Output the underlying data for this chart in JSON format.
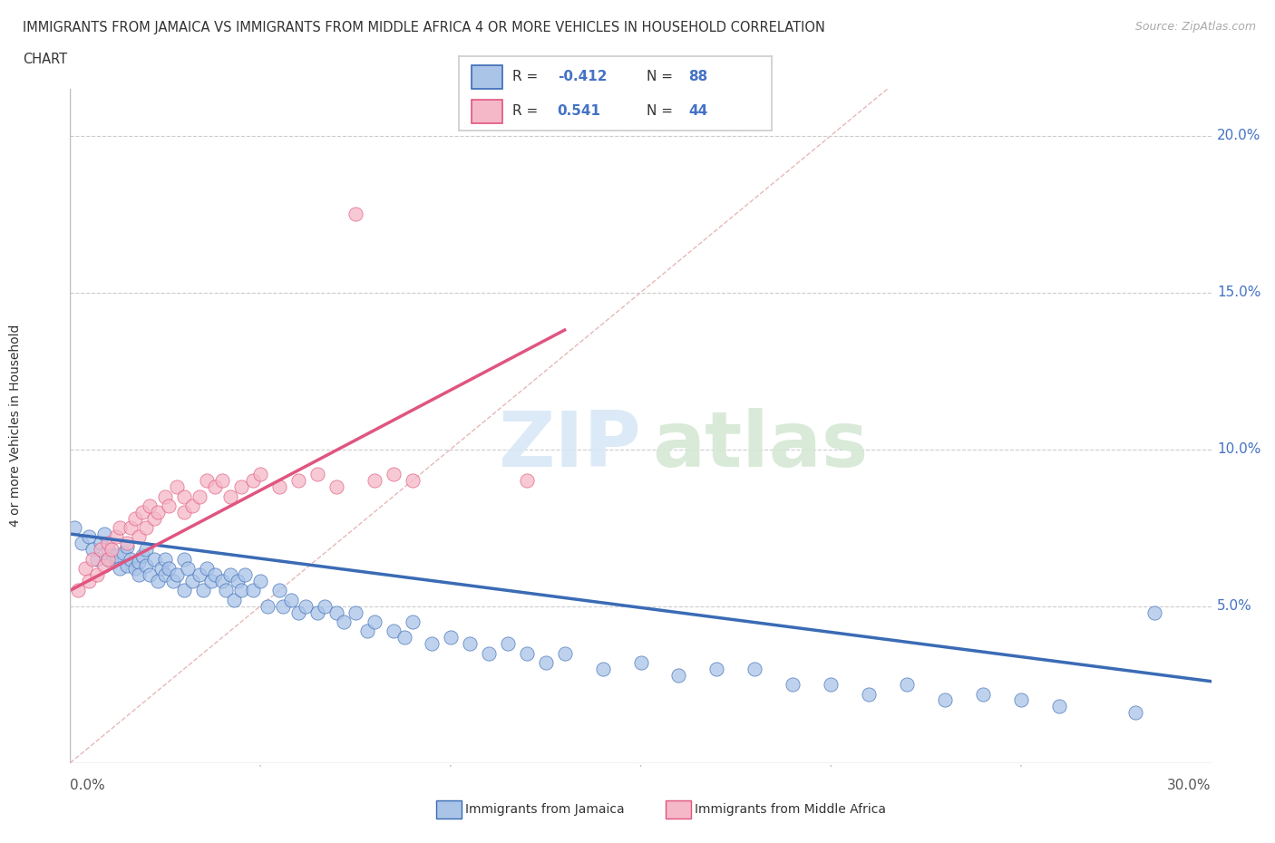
{
  "title_line1": "IMMIGRANTS FROM JAMAICA VS IMMIGRANTS FROM MIDDLE AFRICA 4 OR MORE VEHICLES IN HOUSEHOLD CORRELATION",
  "title_line2": "CHART",
  "source": "Source: ZipAtlas.com",
  "ylabel": "4 or more Vehicles in Household",
  "yticks": [
    "5.0%",
    "10.0%",
    "15.0%",
    "20.0%"
  ],
  "ytick_vals": [
    0.05,
    0.1,
    0.15,
    0.2
  ],
  "xlim": [
    0.0,
    0.3
  ],
  "ylim": [
    0.0,
    0.215
  ],
  "color_jamaica": "#aac4e8",
  "color_middle_africa": "#f5b8c8",
  "color_jamaica_line": "#3a6bb5",
  "color_middle_africa_line": "#e05580",
  "color_diag": "#ccaaaa",
  "jamaica_scatter_x": [
    0.001,
    0.003,
    0.005,
    0.006,
    0.007,
    0.008,
    0.009,
    0.01,
    0.01,
    0.011,
    0.012,
    0.013,
    0.014,
    0.015,
    0.015,
    0.016,
    0.017,
    0.018,
    0.018,
    0.019,
    0.02,
    0.02,
    0.021,
    0.022,
    0.023,
    0.024,
    0.025,
    0.025,
    0.026,
    0.027,
    0.028,
    0.03,
    0.03,
    0.031,
    0.032,
    0.034,
    0.035,
    0.036,
    0.037,
    0.038,
    0.04,
    0.041,
    0.042,
    0.043,
    0.044,
    0.045,
    0.046,
    0.048,
    0.05,
    0.052,
    0.055,
    0.056,
    0.058,
    0.06,
    0.062,
    0.065,
    0.067,
    0.07,
    0.072,
    0.075,
    0.078,
    0.08,
    0.085,
    0.088,
    0.09,
    0.095,
    0.1,
    0.105,
    0.11,
    0.115,
    0.12,
    0.125,
    0.13,
    0.14,
    0.15,
    0.16,
    0.17,
    0.18,
    0.19,
    0.2,
    0.21,
    0.22,
    0.23,
    0.24,
    0.25,
    0.26,
    0.28,
    0.285
  ],
  "jamaica_scatter_y": [
    0.075,
    0.07,
    0.072,
    0.068,
    0.065,
    0.07,
    0.073,
    0.065,
    0.068,
    0.064,
    0.066,
    0.062,
    0.067,
    0.063,
    0.069,
    0.065,
    0.062,
    0.064,
    0.06,
    0.066,
    0.063,
    0.068,
    0.06,
    0.065,
    0.058,
    0.062,
    0.06,
    0.065,
    0.062,
    0.058,
    0.06,
    0.065,
    0.055,
    0.062,
    0.058,
    0.06,
    0.055,
    0.062,
    0.058,
    0.06,
    0.058,
    0.055,
    0.06,
    0.052,
    0.058,
    0.055,
    0.06,
    0.055,
    0.058,
    0.05,
    0.055,
    0.05,
    0.052,
    0.048,
    0.05,
    0.048,
    0.05,
    0.048,
    0.045,
    0.048,
    0.042,
    0.045,
    0.042,
    0.04,
    0.045,
    0.038,
    0.04,
    0.038,
    0.035,
    0.038,
    0.035,
    0.032,
    0.035,
    0.03,
    0.032,
    0.028,
    0.03,
    0.03,
    0.025,
    0.025,
    0.022,
    0.025,
    0.02,
    0.022,
    0.02,
    0.018,
    0.016,
    0.048
  ],
  "middle_africa_scatter_x": [
    0.002,
    0.004,
    0.005,
    0.006,
    0.007,
    0.008,
    0.009,
    0.01,
    0.01,
    0.011,
    0.012,
    0.013,
    0.015,
    0.016,
    0.017,
    0.018,
    0.019,
    0.02,
    0.021,
    0.022,
    0.023,
    0.025,
    0.026,
    0.028,
    0.03,
    0.03,
    0.032,
    0.034,
    0.036,
    0.038,
    0.04,
    0.042,
    0.045,
    0.048,
    0.05,
    0.055,
    0.06,
    0.065,
    0.07,
    0.08,
    0.085,
    0.09,
    0.12,
    0.075
  ],
  "middle_africa_scatter_y": [
    0.055,
    0.062,
    0.058,
    0.065,
    0.06,
    0.068,
    0.063,
    0.065,
    0.07,
    0.068,
    0.072,
    0.075,
    0.07,
    0.075,
    0.078,
    0.072,
    0.08,
    0.075,
    0.082,
    0.078,
    0.08,
    0.085,
    0.082,
    0.088,
    0.08,
    0.085,
    0.082,
    0.085,
    0.09,
    0.088,
    0.09,
    0.085,
    0.088,
    0.09,
    0.092,
    0.088,
    0.09,
    0.092,
    0.088,
    0.09,
    0.092,
    0.09,
    0.09,
    0.175
  ],
  "jamaica_line_x": [
    0.0,
    0.3
  ],
  "jamaica_line_y": [
    0.073,
    0.026
  ],
  "middle_africa_line_x": [
    0.0,
    0.13
  ],
  "middle_africa_line_y": [
    0.055,
    0.138
  ]
}
